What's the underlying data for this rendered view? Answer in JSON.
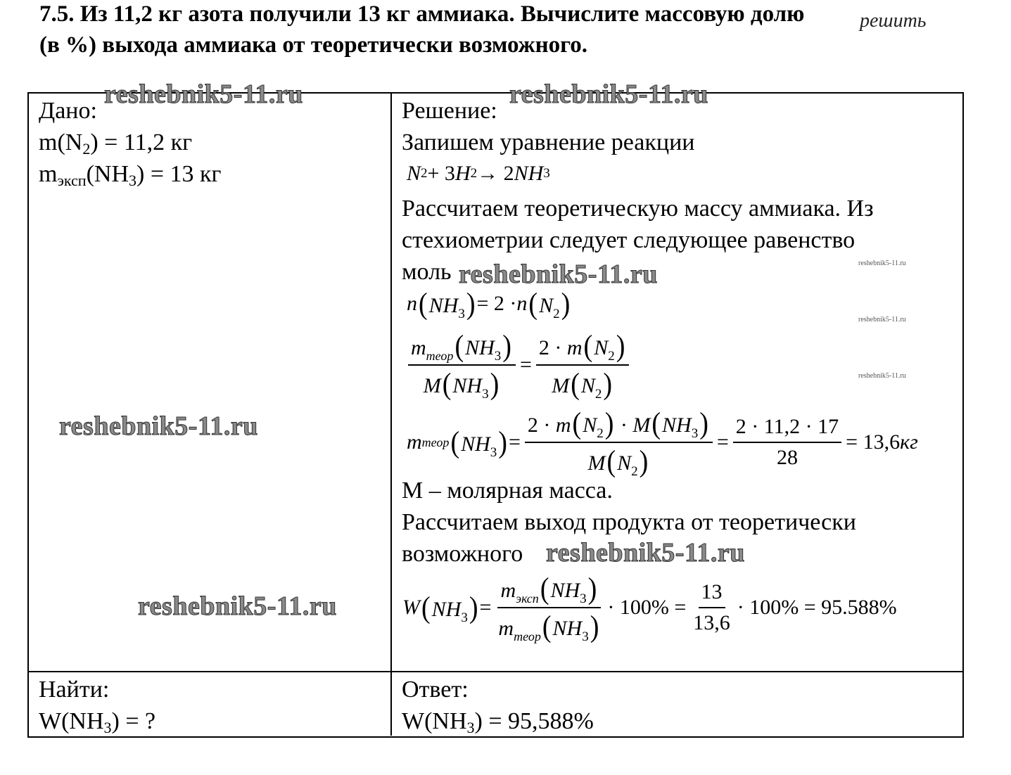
{
  "problem": {
    "line1": "7.5. Из 11,2 кг азота получили 13 кг аммиака. Вычислите массовую долю",
    "line2": "(в %) выхода аммиака от теоретически возможного.",
    "overlay": "решить"
  },
  "given": {
    "heading": "Дано:",
    "lines": [
      {
        "pre": "m(N",
        "sub": "2",
        "post": ") = 11,2 кг"
      },
      {
        "pre": "m",
        "sub": "эксп",
        "mid": "(NH",
        "sub2": "3",
        "post": ") = 13 кг"
      }
    ]
  },
  "find": {
    "heading": "Найти:",
    "pre": "W(NH",
    "sub": "3",
    "post": ") = ?"
  },
  "solution": {
    "heading": "Решение:",
    "text1": "Запишем уравнение реакции",
    "text2": "Рассчитаем теоретическую массу аммиака. Из",
    "text3": "стехиометрии следует следующее равенство",
    "text4": "моль",
    "text5": "M – молярная масса.",
    "text6": "Рассчитаем выход продукта от теоретически",
    "text7": "возможного"
  },
  "formulas": {
    "reaction": [
      "N",
      {
        "s": "2"
      },
      {
        "u": " + 3"
      },
      "H",
      {
        "s": "2"
      },
      {
        "u": " → 2"
      },
      "NH",
      {
        "s": "3"
      }
    ],
    "moles": [
      "n",
      {
        "p": [
          "NH",
          {
            "s": "3"
          }
        ]
      },
      {
        "u": " = 2 · "
      },
      "n",
      {
        "p": [
          "N",
          {
            "s": "2"
          }
        ]
      }
    ],
    "ratio": [
      {
        "f": [
          [
            "m",
            {
              "i": "теор"
            },
            {
              "p": [
                "NH",
                {
                  "s": "3"
                }
              ]
            }
          ],
          [
            "M",
            {
              "p": [
                "NH",
                {
                  "s": "3"
                }
              ]
            }
          ]
        ]
      },
      {
        "u": "="
      },
      {
        "f": [
          [
            {
              "u": "2 · "
            },
            "m",
            {
              "p": [
                "N",
                {
                  "s": "2"
                }
              ]
            }
          ],
          [
            "M",
            {
              "p": [
                "N",
                {
                  "s": "2"
                }
              ]
            }
          ]
        ]
      }
    ],
    "mass": [
      "m",
      {
        "i": "теор"
      },
      {
        "p": [
          "NH",
          {
            "s": "3"
          }
        ]
      },
      {
        "u": " = "
      },
      {
        "f": [
          [
            {
              "u": "2 · "
            },
            "m",
            {
              "p": [
                "N",
                {
                  "s": "2"
                }
              ]
            },
            {
              "u": " · "
            },
            "M",
            {
              "p": [
                "NH",
                {
                  "s": "3"
                }
              ]
            }
          ],
          [
            "M",
            {
              "p": [
                "N",
                {
                  "s": "2"
                }
              ]
            }
          ]
        ]
      },
      {
        "u": " = "
      },
      {
        "f": [
          [
            {
              "u": "2 · 11,2 · 17"
            }
          ],
          [
            {
              "u": "28"
            }
          ]
        ]
      },
      {
        "u": " = 13,6 "
      },
      "кг"
    ],
    "yield": [
      "W",
      {
        "p": [
          "NH",
          {
            "s": "3"
          }
        ]
      },
      {
        "u": " = "
      },
      {
        "f": [
          [
            "m",
            {
              "i": "эксп"
            },
            {
              "p": [
                "NH",
                {
                  "s": "3"
                }
              ]
            }
          ],
          [
            "m",
            {
              "i": "теор"
            },
            {
              "p": [
                "NH",
                {
                  "s": "3"
                }
              ]
            }
          ]
        ]
      },
      {
        "u": " · 100% = "
      },
      {
        "f": [
          [
            {
              "u": "13"
            }
          ],
          [
            {
              "u": "13,6"
            }
          ]
        ]
      },
      {
        "u": " · 100% = 95.588%"
      }
    ]
  },
  "answer": {
    "heading": "Ответ:",
    "pre": "W(NH",
    "sub": "3",
    "post": ") = 95,588%"
  },
  "watermarks": {
    "large": "reshebnik5-11.ru",
    "small": "reshebnik5-11.ru"
  }
}
